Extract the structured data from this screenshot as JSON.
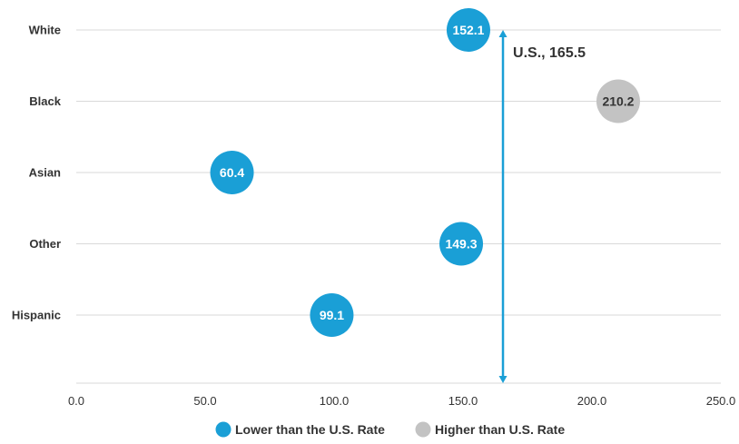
{
  "chart_data": {
    "type": "scatter",
    "categories": [
      "White",
      "Black",
      "Asian",
      "Other",
      "Hispanic"
    ],
    "points": [
      {
        "category": "White",
        "value": 152.1,
        "label": "152.1",
        "group": "lower"
      },
      {
        "category": "Black",
        "value": 210.2,
        "label": "210.2",
        "group": "higher"
      },
      {
        "category": "Asian",
        "value": 60.4,
        "label": "60.4",
        "group": "lower"
      },
      {
        "category": "Other",
        "value": 149.3,
        "label": "149.3",
        "group": "lower"
      },
      {
        "category": "Hispanic",
        "value": 99.1,
        "label": "99.1",
        "group": "lower"
      }
    ],
    "reference_line": {
      "value": 165.5,
      "label": "U.S., 165.5"
    },
    "x_ticks": [
      "0.0",
      "50.0",
      "100.0",
      "150.0",
      "200.0",
      "250.0"
    ],
    "xlim": [
      0,
      250
    ],
    "grid": true,
    "legend": {
      "placement": "bottom",
      "items": [
        {
          "key": "lower",
          "label": "Lower than the U.S. Rate",
          "color": "#1a9fd6"
        },
        {
          "key": "higher",
          "label": "Higher than U.S. Rate",
          "color": "#c3c3c3"
        }
      ]
    },
    "colors": {
      "lower": "#1a9fd6",
      "higher": "#c3c3c3",
      "reference": "#1a9fd6",
      "grid": "#d9d9d9",
      "lower_text": "#ffffff",
      "higher_text": "#333333"
    }
  }
}
